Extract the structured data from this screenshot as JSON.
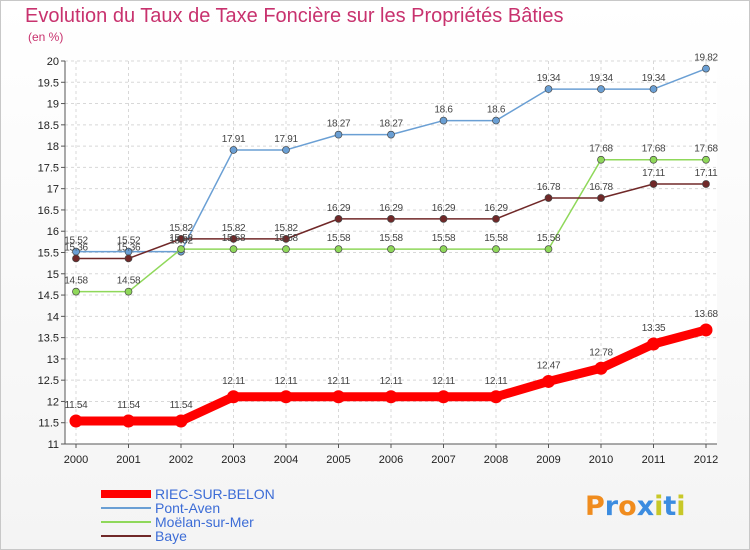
{
  "chart_data": {
    "type": "line",
    "title": "Evolution du Taux de Taxe Foncière sur les Propriétés Bâties",
    "ylabel": "(en %)",
    "xlabel": "",
    "x": [
      "2000",
      "2001",
      "2002",
      "2003",
      "2004",
      "2005",
      "2006",
      "2007",
      "2008",
      "2009",
      "2010",
      "2011",
      "2012"
    ],
    "ylim": [
      11,
      20
    ],
    "yticks": [
      "11",
      "11.5",
      "12",
      "12.5",
      "13",
      "13.5",
      "14",
      "14.5",
      "15",
      "15.5",
      "16",
      "16.5",
      "17",
      "17.5",
      "18",
      "18.5",
      "19",
      "19.5",
      "20"
    ],
    "grid": true,
    "legend_position": "bottom-left",
    "series": [
      {
        "name": "RIEC-SUR-BELON",
        "color": "#ff0000",
        "values": [
          11.54,
          11.54,
          11.54,
          12.11,
          12.11,
          12.11,
          12.11,
          12.11,
          12.11,
          12.47,
          12.78,
          13.35,
          13.68
        ]
      },
      {
        "name": "Pont-Aven",
        "color": "#6a9fd4",
        "values": [
          15.52,
          15.52,
          15.52,
          17.91,
          17.91,
          18.27,
          18.27,
          18.6,
          18.6,
          19.34,
          19.34,
          19.34,
          19.82
        ]
      },
      {
        "name": "Moëlan-sur-Mer",
        "color": "#8fd85a",
        "values": [
          14.58,
          14.58,
          15.58,
          15.58,
          15.58,
          15.58,
          15.58,
          15.58,
          15.58,
          15.58,
          17.68,
          17.68,
          17.68
        ]
      },
      {
        "name": "Baye",
        "color": "#702828",
        "values": [
          15.36,
          15.36,
          15.82,
          15.82,
          15.82,
          16.29,
          16.29,
          16.29,
          16.29,
          16.78,
          16.78,
          17.11,
          17.11
        ]
      }
    ]
  },
  "logo": {
    "letters": [
      "P",
      "r",
      "o",
      "x",
      "i",
      "t",
      "i"
    ],
    "colors": [
      "#f08c1e",
      "#3c8ce0",
      "#f08c1e",
      "#3c8ce0",
      "#c8c828",
      "#3c8ce0",
      "#c8c828"
    ]
  }
}
